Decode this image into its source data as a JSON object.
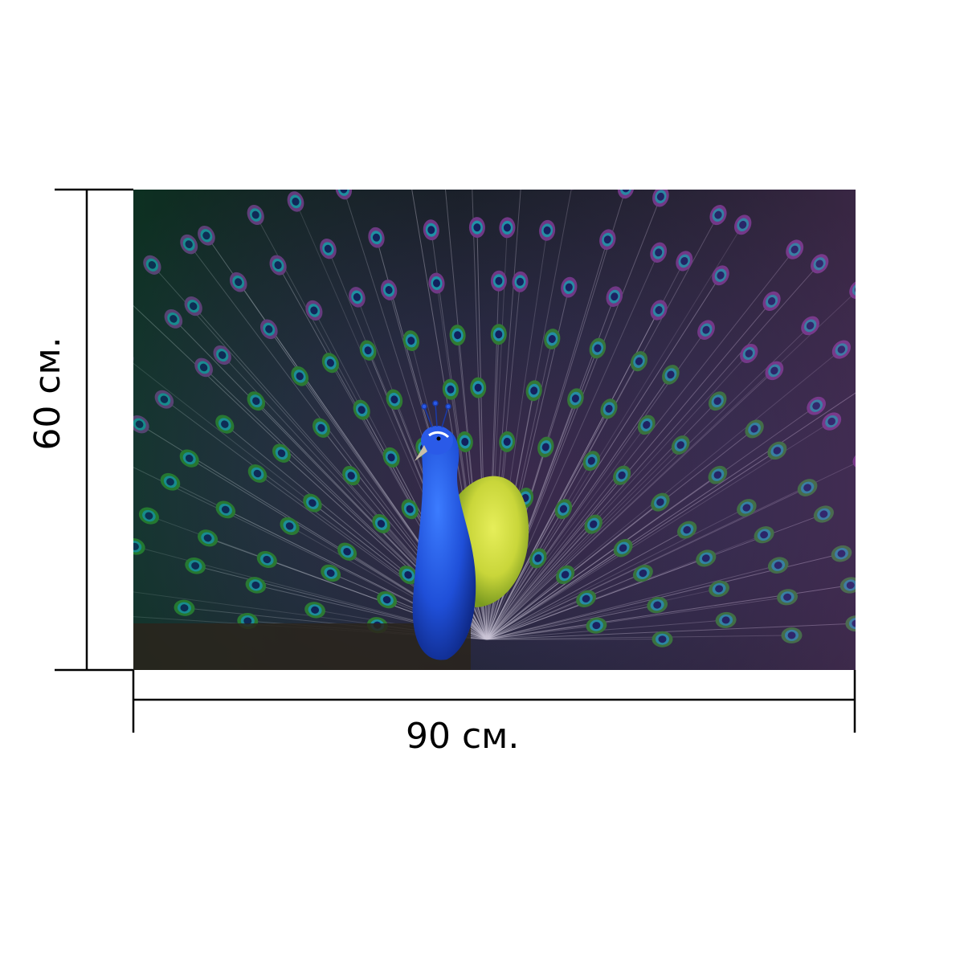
{
  "dimensions": {
    "width_label": "90 см.",
    "height_label": "60 см."
  },
  "product_image": {
    "subject": "peacock",
    "colors": {
      "background": "#0b1410",
      "peacock_body": "#1f4fd8",
      "breast_feathers": "#c9d63a",
      "eye_outer": "#2f8a2a",
      "eye_middle": "#1aa6b4",
      "eye_center": "#0a1e5c",
      "feather_shaft": "#e9e6f0",
      "purple_tint": "#7a3a8c"
    }
  }
}
